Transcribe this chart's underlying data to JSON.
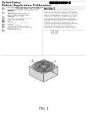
{
  "bg_color": "#ffffff",
  "text_color": "#222222",
  "small_text_color": "#444444",
  "barcode_color": "#000000",
  "border_color": "#888888",
  "box_top_color": "#e8e8e8",
  "box_left_color": "#d0d0d0",
  "box_right_color": "#d8d8d8",
  "box_bottom_color": "#c8c8c8",
  "platform_color": "#cccccc",
  "platform_edge": "#888888",
  "outer_ring_color": "#b0b0b0",
  "inner_ring_color": "#888888",
  "blade_color": "#555555",
  "hub_color": "#dddddd",
  "blade_gap_color": "#999999",
  "fig_label": "FIG. 1"
}
